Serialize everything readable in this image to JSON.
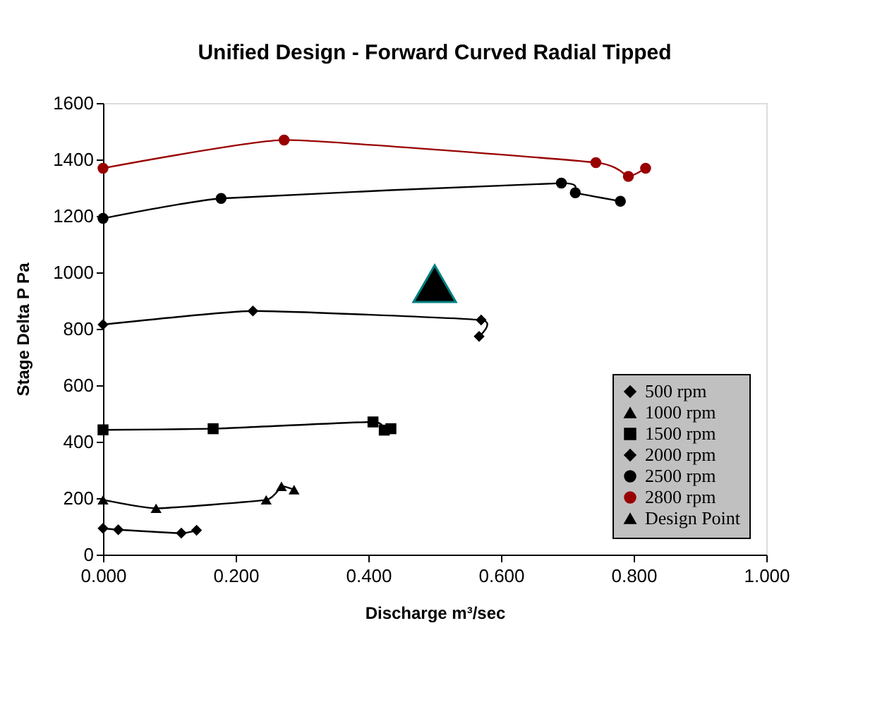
{
  "chart_data": {
    "type": "line",
    "title": "Unified Design - Forward Curved Radial Tipped",
    "xlabel": "Discharge m³/sec",
    "ylabel": "Stage Delta P  Pa",
    "xlim": [
      0,
      1
    ],
    "xticks": [
      {
        "value": 0,
        "label": "0.000"
      },
      {
        "value": 0.2,
        "label": "0.200"
      },
      {
        "value": 0.4,
        "label": "0.400"
      },
      {
        "value": 0.6,
        "label": "0.600"
      },
      {
        "value": 0.8,
        "label": "0.800"
      },
      {
        "value": 1,
        "label": "1.000"
      }
    ],
    "ylim": [
      0,
      1600
    ],
    "yticks": [
      0,
      200,
      400,
      600,
      800,
      1000,
      1200,
      1400,
      1600
    ],
    "grid": false,
    "legend": "bottom right",
    "series": [
      {
        "name": "500   rpm",
        "color": "#000000",
        "marker": "diamond",
        "x": [
          0,
          0.023,
          0.118,
          0.141
        ],
        "values": [
          93,
          88,
          76,
          86
        ]
      },
      {
        "name": "1000 rpm",
        "color": "#000000",
        "marker": "triangle",
        "x": [
          0,
          0.08,
          0.246,
          0.269,
          0.288
        ],
        "values": [
          194,
          164,
          194,
          242,
          230
        ]
      },
      {
        "name": "1500 rpm",
        "color": "#000000",
        "marker": "square",
        "x": [
          0,
          0.166,
          0.407,
          0.424,
          0.434
        ],
        "values": [
          442,
          446,
          470,
          441,
          446
        ]
      },
      {
        "name": "2000 rpm",
        "color": "#000000",
        "marker": "diamond",
        "x": [
          0,
          0.226,
          0.57,
          0.567
        ],
        "values": [
          815,
          863,
          831,
          773
        ]
      },
      {
        "name": "2500 rpm",
        "color": "#000000",
        "marker": "circle",
        "x": [
          0,
          0.178,
          0.691,
          0.712,
          0.78
        ],
        "values": [
          1191,
          1262,
          1316,
          1282,
          1252
        ]
      },
      {
        "name": "2800 rpm",
        "color": "#990000",
        "marker": "circle",
        "x": [
          0,
          0.273,
          0.743,
          0.792,
          0.818
        ],
        "values": [
          1369,
          1469,
          1389,
          1340,
          1369
        ]
      },
      {
        "name": "Design Point",
        "color": "#000000",
        "type": "scatter",
        "marker": "triangle",
        "x": [
          0.5
        ],
        "values": [
          960
        ]
      }
    ]
  }
}
